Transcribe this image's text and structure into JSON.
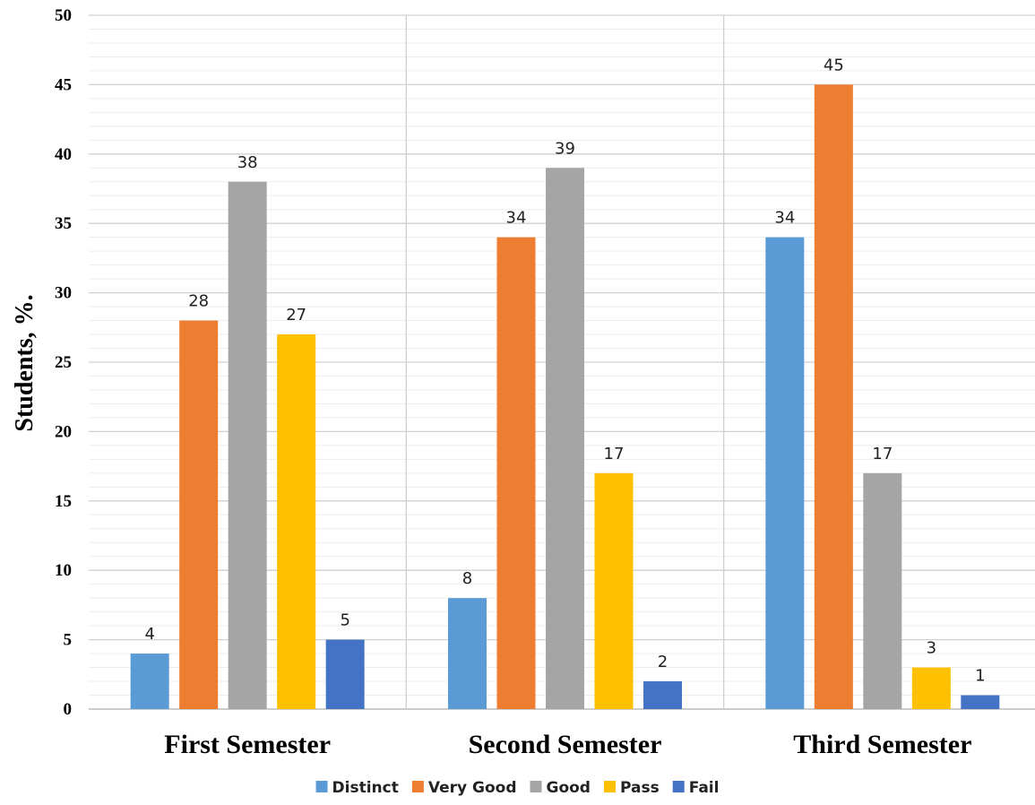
{
  "chart_data": {
    "type": "bar",
    "categories": [
      "First Semester",
      "Second Semester",
      "Third Semester"
    ],
    "series": [
      {
        "name": "Distinct",
        "color": "#5B9BD5",
        "values": [
          4,
          8,
          34
        ]
      },
      {
        "name": "Very Good",
        "color": "#ED7D31",
        "values": [
          28,
          34,
          45
        ]
      },
      {
        "name": "Good",
        "color": "#A5A5A5",
        "values": [
          38,
          39,
          17
        ]
      },
      {
        "name": "Pass",
        "color": "#FFC000",
        "values": [
          27,
          17,
          3
        ]
      },
      {
        "name": "Fail",
        "color": "#4472C4",
        "values": [
          5,
          2,
          1
        ]
      }
    ],
    "title": "",
    "xlabel": "",
    "ylabel": "Students, %.",
    "ylim": [
      0,
      50
    ],
    "yticks": [
      0,
      5,
      10,
      15,
      20,
      25,
      30,
      35,
      40,
      45,
      50
    ],
    "grid": true,
    "legend": "bottom",
    "data_labels": true
  }
}
